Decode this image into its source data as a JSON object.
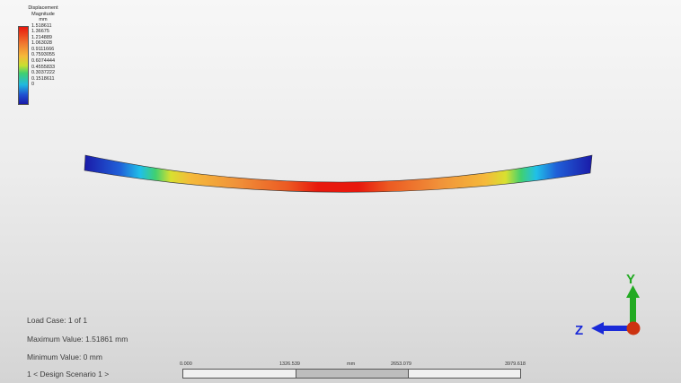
{
  "legend": {
    "title_line1": "Displacement",
    "title_line2": "Magnitude",
    "title_line3": "mm",
    "values": [
      "1.518611",
      "1.36675",
      "1.214889",
      "1.063028",
      "0.9111666",
      "0.7593055",
      "0.6074444",
      "0.4555833",
      "0.3037222",
      "0.1518611",
      "0"
    ],
    "colors": {
      "max": "#e8180d",
      "high": "#f07a30",
      "mid_high": "#f5b93a",
      "mid": "#c8e030",
      "mid_low": "#40d070",
      "low": "#20b8e0",
      "min": "#1a1aa8"
    }
  },
  "info": {
    "load_case": "Load Case:  1 of 1",
    "maximum": "Maximum Value: 1.51861 mm",
    "minimum": "Minimum Value: 0 mm",
    "scenario": "1 < Design Scenario 1 >"
  },
  "scale": {
    "tick0": "0.000",
    "tick1": "1326.539",
    "unit": "mm",
    "tick2": "2653.079",
    "tick3": "3979.618"
  },
  "triad": {
    "y_label": "Y",
    "z_label": "Z",
    "y_color": "#22aa22",
    "z_color": "#1a2ad8",
    "x_color": "#cc3311"
  }
}
